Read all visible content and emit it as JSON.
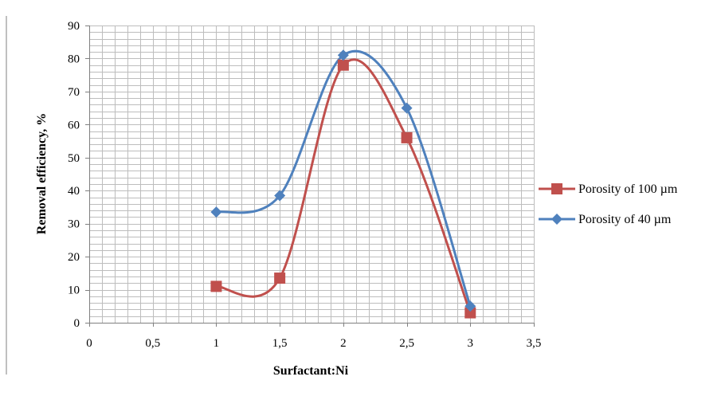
{
  "chart_data": {
    "type": "line",
    "title": "",
    "xlabel": "Surfactant:Ni",
    "ylabel": "Removal efficiency, %",
    "xlim": [
      0,
      3.5
    ],
    "ylim": [
      0,
      90
    ],
    "x_ticks": [
      0,
      0.5,
      1,
      1.5,
      2,
      2.5,
      3,
      3.5
    ],
    "x_tick_labels": [
      "0",
      "0,5",
      "1",
      "1,5",
      "2",
      "2,5",
      "3",
      "3,5"
    ],
    "y_ticks": [
      0,
      10,
      20,
      30,
      40,
      50,
      60,
      70,
      80,
      90
    ],
    "y_tick_labels": [
      "0",
      "10",
      "20",
      "30",
      "40",
      "50",
      "60",
      "70",
      "80",
      "90"
    ],
    "grid": true,
    "legend_position": "right",
    "smooth": true,
    "series": [
      {
        "name": "Porosity of 100 µm",
        "color": "#c0504d",
        "marker": "square",
        "x": [
          1,
          1.5,
          2,
          2.5,
          3
        ],
        "y": [
          11,
          13.5,
          78,
          56,
          3
        ]
      },
      {
        "name": "Porosity of 40 µm",
        "color": "#4f81bd",
        "marker": "diamond",
        "x": [
          1,
          1.5,
          2,
          2.5,
          3
        ],
        "y": [
          33.5,
          38.5,
          81,
          65,
          5
        ]
      }
    ]
  }
}
